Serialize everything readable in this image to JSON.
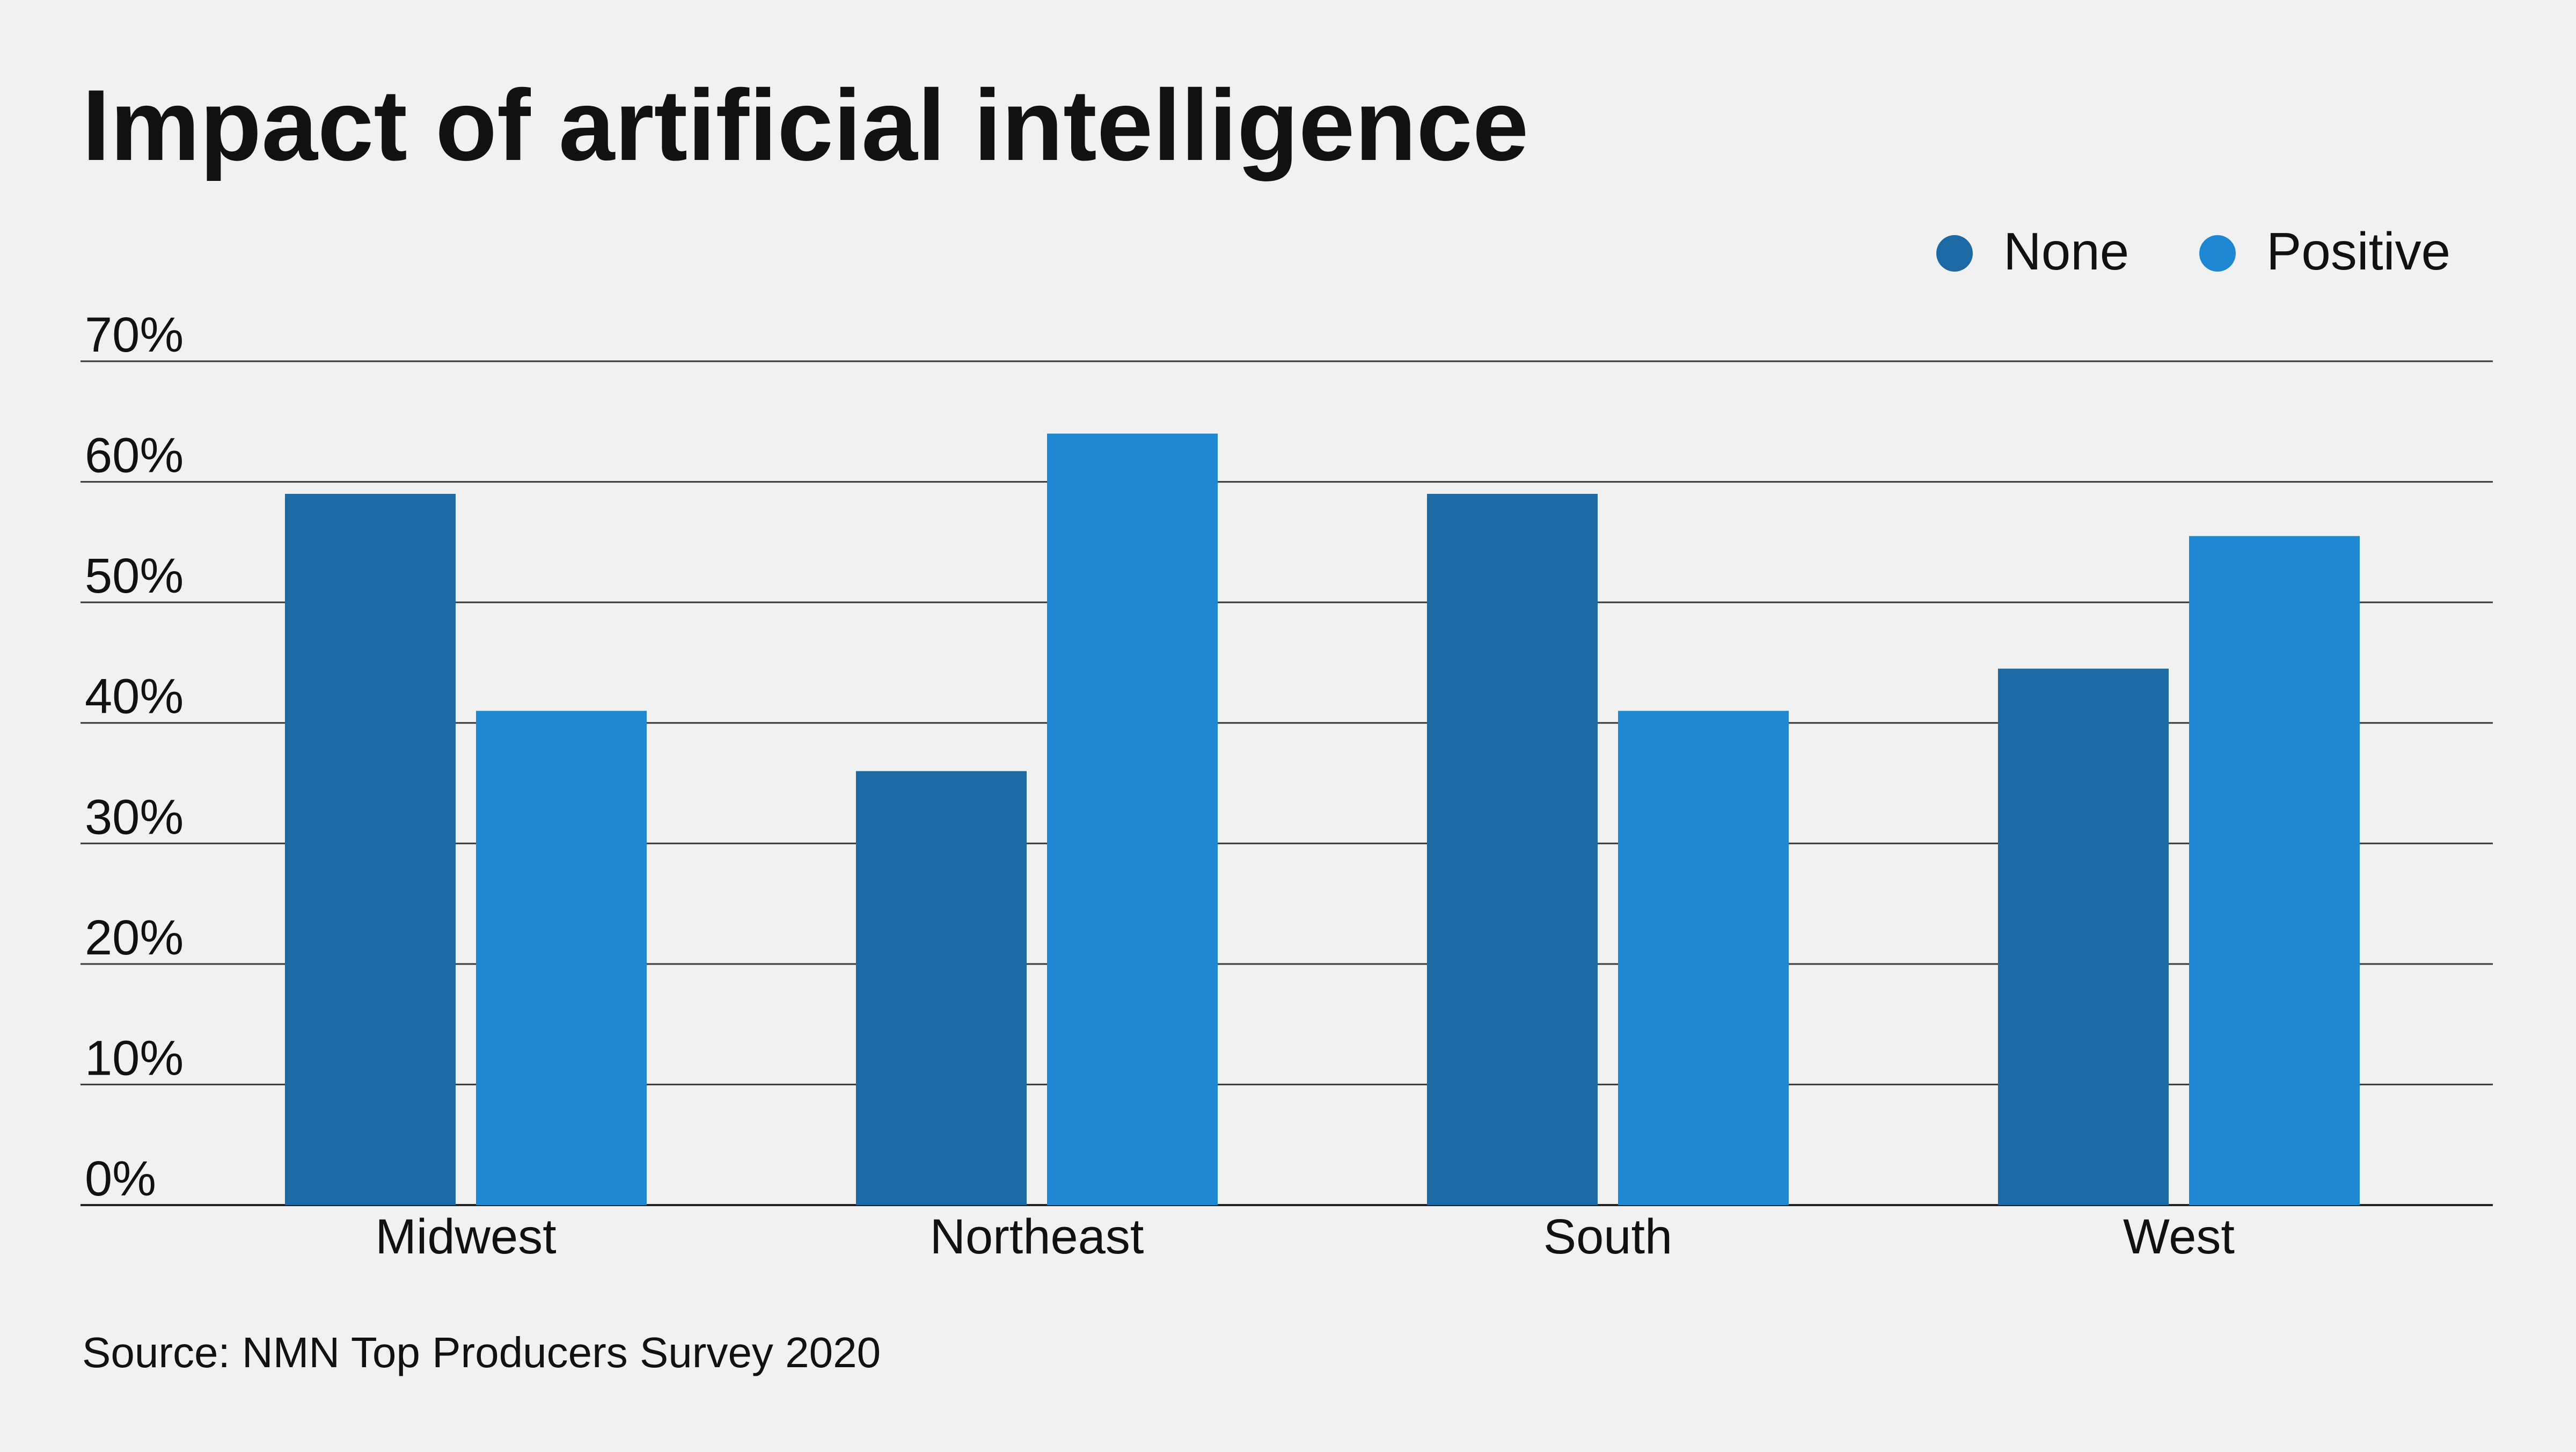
{
  "chart_data": {
    "type": "bar",
    "title": "Impact of artificial intelligence",
    "xlabel": "",
    "ylabel": "",
    "categories": [
      "Midwest",
      "Northeast",
      "South",
      "West"
    ],
    "series": [
      {
        "name": "None",
        "values": [
          59,
          36,
          59,
          44.5
        ],
        "color": "#1c69a3"
      },
      {
        "name": "Positive",
        "values": [
          41,
          64,
          41,
          55.5
        ],
        "color": "#1f88d3"
      }
    ],
    "ylim": [
      0,
      70
    ],
    "yticks": [
      0,
      10,
      20,
      30,
      40,
      50,
      60,
      70
    ],
    "ytick_labels": [
      "0%",
      "10%",
      "20%",
      "30%",
      "40%",
      "50%",
      "60%",
      "70%"
    ],
    "grid": true,
    "legend_position": "top-right",
    "source": "Source: NMN Top Producers Survey 2020"
  }
}
